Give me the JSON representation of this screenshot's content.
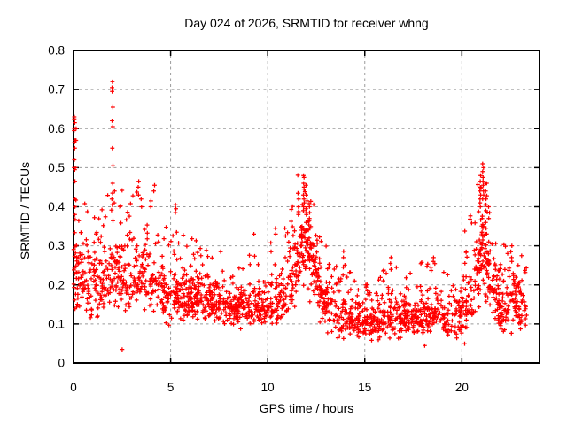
{
  "window": {
    "title": "Day 024 of 2026, SRMTID for receiver whng"
  },
  "colors": {
    "background": "#ffffff",
    "marker": "#ff0000",
    "grid": "#9b9b9b",
    "border": "#000000",
    "text": "#000000"
  },
  "chart_data": {
    "type": "scatter",
    "title": "Day 024 of 2026, SRMTID for receiver whng",
    "xlabel": "GPS time / hours",
    "ylabel": "SRMTID / TECUs",
    "xlim": [
      0,
      24
    ],
    "ylim": [
      0,
      0.8
    ],
    "xticks": [
      0,
      5,
      10,
      15,
      20
    ],
    "xtick_labels": [
      "0",
      "5",
      "10",
      "15",
      "20"
    ],
    "yticks": [
      0,
      0.1,
      0.2,
      0.3,
      0.4,
      0.5,
      0.6,
      0.7,
      0.8
    ],
    "ytick_labels": [
      "0",
      "0.1",
      "0.2",
      "0.3",
      "0.4",
      "0.5",
      "0.6",
      "0.7",
      "0.8"
    ],
    "grid": true,
    "grid_style": "dashed",
    "legend": "none",
    "marker": "plus",
    "marker_color": "#ff0000",
    "x_max_data": 23.35,
    "n_band": 1750,
    "n_tail": 300,
    "seed": 20260124,
    "peaks": [
      {
        "x": 0.05,
        "ymax": 0.63
      },
      {
        "x": 2.0,
        "ymax": 0.72
      },
      {
        "x": 3.4,
        "ymax": 0.465
      },
      {
        "x": 11.9,
        "ymax": 0.48
      },
      {
        "x": 21.1,
        "ymax": 0.51
      },
      {
        "x": 22.55,
        "ymax": 0.3
      }
    ],
    "band": [
      [
        0.0,
        0.235,
        0.065,
        0.1
      ],
      [
        0.3,
        0.225,
        0.065,
        0.08
      ],
      [
        0.8,
        0.2,
        0.055,
        0.06
      ],
      [
        1.3,
        0.2,
        0.055,
        0.07
      ],
      [
        1.8,
        0.22,
        0.06,
        0.1
      ],
      [
        2.2,
        0.225,
        0.06,
        0.09
      ],
      [
        2.7,
        0.22,
        0.055,
        0.08
      ],
      [
        3.2,
        0.225,
        0.055,
        0.08
      ],
      [
        3.7,
        0.21,
        0.05,
        0.08
      ],
      [
        4.2,
        0.195,
        0.05,
        0.07
      ],
      [
        4.7,
        0.175,
        0.045,
        0.07
      ],
      [
        5.2,
        0.17,
        0.04,
        0.07
      ],
      [
        5.7,
        0.165,
        0.04,
        0.06
      ],
      [
        6.2,
        0.16,
        0.04,
        0.06
      ],
      [
        6.7,
        0.155,
        0.035,
        0.05
      ],
      [
        7.2,
        0.15,
        0.035,
        0.05
      ],
      [
        7.7,
        0.15,
        0.035,
        0.05
      ],
      [
        8.2,
        0.148,
        0.035,
        0.05
      ],
      [
        8.7,
        0.143,
        0.035,
        0.05
      ],
      [
        9.2,
        0.14,
        0.035,
        0.05
      ],
      [
        9.7,
        0.142,
        0.038,
        0.05
      ],
      [
        10.2,
        0.15,
        0.04,
        0.06
      ],
      [
        10.7,
        0.165,
        0.045,
        0.07
      ],
      [
        11.1,
        0.185,
        0.05,
        0.08
      ],
      [
        11.5,
        0.24,
        0.06,
        0.09
      ],
      [
        11.9,
        0.3,
        0.065,
        0.06
      ],
      [
        12.2,
        0.27,
        0.06,
        0.06
      ],
      [
        12.6,
        0.2,
        0.05,
        0.07
      ],
      [
        13.0,
        0.15,
        0.04,
        0.06
      ],
      [
        13.5,
        0.125,
        0.035,
        0.05
      ],
      [
        13.9,
        0.115,
        0.032,
        0.07
      ],
      [
        14.4,
        0.105,
        0.03,
        0.04
      ],
      [
        15.0,
        0.1,
        0.028,
        0.04
      ],
      [
        15.6,
        0.105,
        0.03,
        0.05
      ],
      [
        16.2,
        0.115,
        0.035,
        0.06
      ],
      [
        16.7,
        0.12,
        0.035,
        0.05
      ],
      [
        17.2,
        0.115,
        0.032,
        0.04
      ],
      [
        17.7,
        0.112,
        0.03,
        0.05
      ],
      [
        18.2,
        0.12,
        0.035,
        0.06
      ],
      [
        18.7,
        0.125,
        0.035,
        0.05
      ],
      [
        19.2,
        0.11,
        0.032,
        0.04
      ],
      [
        19.7,
        0.115,
        0.035,
        0.05
      ],
      [
        20.1,
        0.14,
        0.045,
        0.07
      ],
      [
        20.5,
        0.185,
        0.055,
        0.09
      ],
      [
        20.9,
        0.25,
        0.07,
        0.08
      ],
      [
        21.2,
        0.27,
        0.07,
        0.07
      ],
      [
        21.6,
        0.19,
        0.055,
        0.07
      ],
      [
        22.0,
        0.14,
        0.04,
        0.05
      ],
      [
        22.4,
        0.16,
        0.05,
        0.07
      ],
      [
        22.7,
        0.17,
        0.05,
        0.06
      ],
      [
        23.0,
        0.14,
        0.045,
        0.05
      ],
      [
        23.35,
        0.12,
        0.04,
        0.04
      ]
    ],
    "outlier_columns": [
      {
        "x": 0.05,
        "ys": [
          0.63,
          0.625,
          0.615,
          0.6,
          0.595,
          0.57,
          0.565,
          0.55,
          0.52,
          0.5,
          0.495,
          0.465,
          0.42,
          0.4,
          0.38
        ]
      },
      {
        "x": 0.12,
        "ys": [
          0.6,
          0.57,
          0.5
        ]
      },
      {
        "x": 2.0,
        "ys": [
          0.72,
          0.705,
          0.695,
          0.655,
          0.62,
          0.605,
          0.55,
          0.505,
          0.46,
          0.435,
          0.42,
          0.405
        ]
      },
      {
        "x": 2.12,
        "ys": [
          0.44,
          0.41
        ]
      },
      {
        "x": 3.35,
        "ys": [
          0.465,
          0.45,
          0.43
        ]
      },
      {
        "x": 3.5,
        "ys": [
          0.42,
          0.4
        ]
      },
      {
        "x": 4.15,
        "ys": [
          0.455,
          0.44
        ]
      },
      {
        "x": 4.0,
        "ys": [
          0.415,
          0.4
        ]
      },
      {
        "x": 5.25,
        "ys": [
          0.405,
          0.395,
          0.385
        ]
      },
      {
        "x": 11.6,
        "ys": [
          0.42,
          0.4,
          0.38
        ]
      },
      {
        "x": 11.75,
        "ys": [
          0.35,
          0.34,
          0.33,
          0.32,
          0.31,
          0.3
        ]
      },
      {
        "x": 11.85,
        "ys": [
          0.48,
          0.475,
          0.46,
          0.45,
          0.445,
          0.43,
          0.42,
          0.41,
          0.4,
          0.39
        ]
      },
      {
        "x": 12.0,
        "ys": [
          0.455,
          0.43,
          0.415,
          0.395,
          0.38,
          0.36,
          0.34
        ]
      },
      {
        "x": 12.15,
        "ys": [
          0.4,
          0.385,
          0.37,
          0.345,
          0.32
        ]
      },
      {
        "x": 13.9,
        "ys": [
          0.27,
          0.245,
          0.225
        ]
      },
      {
        "x": 16.35,
        "ys": [
          0.27,
          0.255
        ]
      },
      {
        "x": 18.55,
        "ys": [
          0.27,
          0.26
        ]
      },
      {
        "x": 20.95,
        "ys": [
          0.48,
          0.465,
          0.45,
          0.44,
          0.43,
          0.42,
          0.41,
          0.4
        ]
      },
      {
        "x": 21.05,
        "ys": [
          0.37,
          0.355,
          0.345,
          0.335,
          0.325,
          0.315,
          0.305
        ]
      },
      {
        "x": 21.1,
        "ys": [
          0.51,
          0.5,
          0.49,
          0.475,
          0.465,
          0.455,
          0.44,
          0.43,
          0.42
        ]
      },
      {
        "x": 21.25,
        "ys": [
          0.46,
          0.44,
          0.42,
          0.405,
          0.39,
          0.36,
          0.345,
          0.33
        ]
      },
      {
        "x": 21.4,
        "ys": [
          0.4,
          0.385,
          0.37,
          0.31
        ]
      },
      {
        "x": 22.55,
        "ys": [
          0.3,
          0.285,
          0.27,
          0.26
        ]
      },
      {
        "x": 2.5,
        "ys": [
          0.035
        ]
      },
      {
        "x": 9.3,
        "ys": [
          0.33
        ]
      },
      {
        "x": 10.4,
        "ys": [
          0.345,
          0.33
        ]
      }
    ]
  }
}
